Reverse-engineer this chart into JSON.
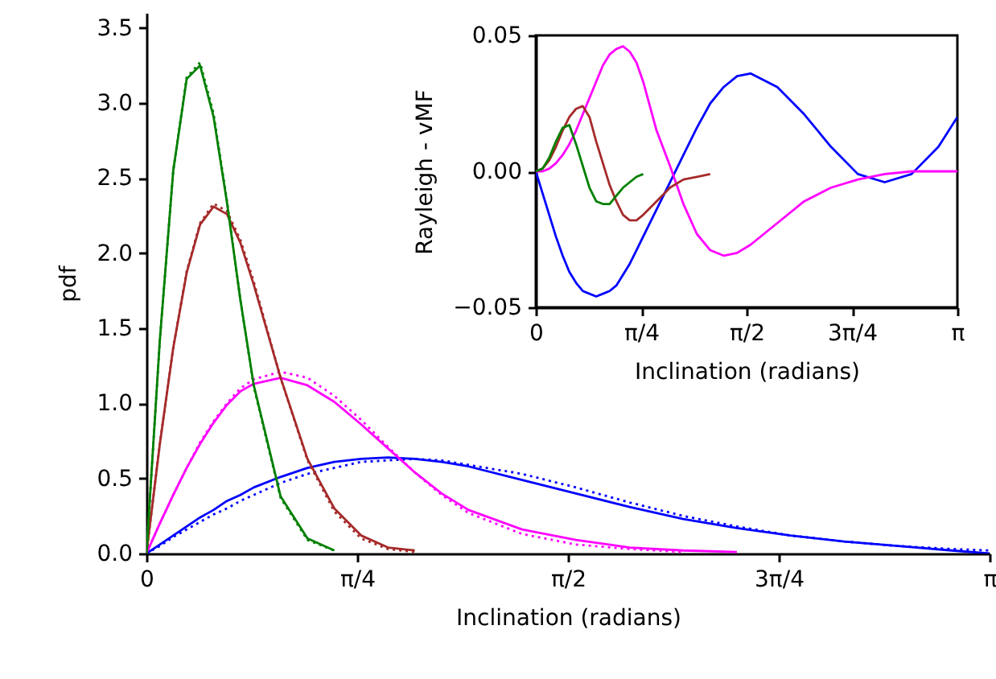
{
  "chart_data": [
    {
      "type": "line",
      "xlabel": "Inclination (radians)",
      "ylabel": "pdf",
      "xlim": [
        0,
        3.1416
      ],
      "ylim": [
        0,
        3.6
      ],
      "xticks": [
        {
          "value": 0,
          "label": "0"
        },
        {
          "value": 0.7854,
          "label": "π/4"
        },
        {
          "value": 1.5708,
          "label": "π/2"
        },
        {
          "value": 2.3562,
          "label": "3π/4"
        },
        {
          "value": 3.1416,
          "label": "π"
        }
      ],
      "yticks": [
        {
          "value": 0,
          "label": "0.0"
        },
        {
          "value": 0.5,
          "label": "0.5"
        },
        {
          "value": 1,
          "label": "1.0"
        },
        {
          "value": 1.5,
          "label": "1.5"
        },
        {
          "value": 2,
          "label": "2.0"
        },
        {
          "value": 2.5,
          "label": "2.5"
        },
        {
          "value": 3,
          "label": "3.0"
        },
        {
          "value": 3.5,
          "label": "3.5"
        }
      ],
      "x": [
        0,
        0.05,
        0.1,
        0.15,
        0.2,
        0.25,
        0.3,
        0.35,
        0.4,
        0.5,
        0.6,
        0.7,
        0.8,
        0.9,
        1.0,
        1.1,
        1.2,
        1.4,
        1.6,
        1.8,
        2.0,
        2.2,
        2.4,
        2.6,
        2.8,
        3.0,
        3.1416
      ],
      "series": [
        {
          "color": "#0000ff",
          "line_style": "solid",
          "values": [
            0,
            0.06,
            0.12,
            0.18,
            0.24,
            0.29,
            0.35,
            0.39,
            0.44,
            0.51,
            0.57,
            0.61,
            0.63,
            0.64,
            0.63,
            0.61,
            0.58,
            0.49,
            0.4,
            0.31,
            0.23,
            0.17,
            0.12,
            0.08,
            0.05,
            0.02,
            0
          ]
        },
        {
          "color": "#0000ff",
          "line_style": "dotted",
          "values": [
            0,
            0.05,
            0.11,
            0.16,
            0.21,
            0.26,
            0.3,
            0.35,
            0.39,
            0.47,
            0.53,
            0.57,
            0.61,
            0.62,
            0.63,
            0.62,
            0.59,
            0.53,
            0.44,
            0.34,
            0.25,
            0.18,
            0.12,
            0.08,
            0.05,
            0.03,
            0.02
          ]
        },
        {
          "color": "#ff00ff",
          "line_style": "solid",
          "x": [
            0,
            0.05,
            0.1,
            0.15,
            0.2,
            0.25,
            0.3,
            0.35,
            0.4,
            0.5,
            0.6,
            0.7,
            0.8,
            0.9,
            1.0,
            1.1,
            1.2,
            1.4,
            1.6,
            1.8,
            2.0,
            2.2
          ],
          "values": [
            0,
            0.2,
            0.39,
            0.57,
            0.73,
            0.87,
            0.99,
            1.08,
            1.13,
            1.17,
            1.12,
            1.01,
            0.86,
            0.7,
            0.54,
            0.4,
            0.29,
            0.16,
            0.09,
            0.04,
            0.02,
            0.01
          ]
        },
        {
          "color": "#ff00ff",
          "line_style": "dotted",
          "x": [
            0,
            0.05,
            0.1,
            0.15,
            0.2,
            0.25,
            0.3,
            0.35,
            0.4,
            0.5,
            0.6,
            0.7,
            0.8,
            0.9,
            1.0,
            1.1,
            1.2,
            1.4,
            1.6,
            1.8,
            2.0
          ],
          "values": [
            0,
            0.2,
            0.39,
            0.57,
            0.74,
            0.88,
            1.0,
            1.1,
            1.16,
            1.21,
            1.17,
            1.05,
            0.89,
            0.71,
            0.54,
            0.39,
            0.27,
            0.13,
            0.06,
            0.03,
            0.01
          ]
        },
        {
          "color": "#a52a2a",
          "line_style": "solid",
          "x": [
            0,
            0.05,
            0.1,
            0.15,
            0.2,
            0.25,
            0.3,
            0.35,
            0.4,
            0.5,
            0.6,
            0.7,
            0.8,
            0.9,
            1.0
          ],
          "values": [
            0,
            0.73,
            1.37,
            1.87,
            2.19,
            2.31,
            2.26,
            2.07,
            1.79,
            1.17,
            0.63,
            0.3,
            0.12,
            0.04,
            0.02
          ]
        },
        {
          "color": "#a52a2a",
          "line_style": "dotted",
          "x": [
            0,
            0.05,
            0.1,
            0.15,
            0.2,
            0.25,
            0.3,
            0.35,
            0.4,
            0.5,
            0.6,
            0.7,
            0.8,
            0.9,
            1.0
          ],
          "values": [
            0,
            0.73,
            1.37,
            1.88,
            2.2,
            2.33,
            2.28,
            2.09,
            1.81,
            1.17,
            0.62,
            0.28,
            0.1,
            0.03,
            0.01
          ]
        },
        {
          "color": "#008000",
          "line_style": "solid",
          "x": [
            0,
            0.05,
            0.1,
            0.15,
            0.2,
            0.25,
            0.3,
            0.35,
            0.4,
            0.5,
            0.6,
            0.7
          ],
          "values": [
            0,
            1.42,
            2.55,
            3.16,
            3.25,
            2.91,
            2.34,
            1.69,
            1.12,
            0.38,
            0.1,
            0.02
          ]
        },
        {
          "color": "#008000",
          "line_style": "dotted",
          "x": [
            0,
            0.05,
            0.1,
            0.15,
            0.2,
            0.25,
            0.3,
            0.35,
            0.4,
            0.5,
            0.6,
            0.7
          ],
          "values": [
            0,
            1.42,
            2.55,
            3.17,
            3.27,
            2.93,
            2.35,
            1.69,
            1.11,
            0.37,
            0.09,
            0.02
          ]
        }
      ]
    },
    {
      "type": "line",
      "xlabel": "Inclination (radians)",
      "ylabel": "Rayleigh - vMF",
      "xlim": [
        0,
        3.1416
      ],
      "ylim": [
        -0.05,
        0.05
      ],
      "xticks": [
        {
          "value": 0,
          "label": "0"
        },
        {
          "value": 0.7854,
          "label": "π/4"
        },
        {
          "value": 1.5708,
          "label": "π/2"
        },
        {
          "value": 2.3562,
          "label": "3π/4"
        },
        {
          "value": 3.1416,
          "label": "π"
        }
      ],
      "yticks": [
        {
          "value": -0.05,
          "label": "−0.05"
        },
        {
          "value": 0,
          "label": "0.00"
        },
        {
          "value": 0.05,
          "label": "0.05"
        }
      ],
      "x": [
        0,
        0.05,
        0.1,
        0.15,
        0.2,
        0.25,
        0.3,
        0.35,
        0.4,
        0.45,
        0.5,
        0.55,
        0.6,
        0.65,
        0.7,
        0.75,
        0.8,
        0.9,
        1.0,
        1.1,
        1.2,
        1.3,
        1.4,
        1.5,
        1.6,
        1.8,
        2.0,
        2.2,
        2.4,
        2.6,
        2.8,
        3.0,
        3.1416
      ],
      "series": [
        {
          "color": "#0000ff",
          "values": [
            0,
            -0.008,
            -0.016,
            -0.024,
            -0.031,
            -0.037,
            -0.041,
            -0.044,
            -0.045,
            -0.046,
            -0.045,
            -0.044,
            -0.042,
            -0.038,
            -0.034,
            -0.029,
            -0.024,
            -0.014,
            -0.004,
            0.006,
            0.016,
            0.025,
            0.031,
            0.035,
            0.036,
            0.031,
            0.021,
            0.009,
            -0.001,
            -0.004,
            -0.001,
            0.009,
            0.02
          ]
        },
        {
          "color": "#ff00ff",
          "values": [
            0,
            0,
            0.001,
            0.003,
            0.006,
            0.01,
            0.015,
            0.021,
            0.027,
            0.033,
            0.039,
            0.043,
            0.045,
            0.046,
            0.044,
            0.04,
            0.033,
            0.015,
            0.002,
            -0.012,
            -0.023,
            -0.029,
            -0.031,
            -0.03,
            -0.027,
            -0.019,
            -0.011,
            -0.006,
            -0.003,
            -0.001,
            0,
            0,
            0
          ]
        },
        {
          "color": "#a52a2a",
          "x": [
            0,
            0.05,
            0.1,
            0.15,
            0.2,
            0.25,
            0.3,
            0.35,
            0.4,
            0.45,
            0.5,
            0.55,
            0.6,
            0.65,
            0.7,
            0.75,
            0.8,
            0.9,
            1.0,
            1.1,
            1.2,
            1.3
          ],
          "values": [
            0,
            0.001,
            0.004,
            0.009,
            0.015,
            0.02,
            0.023,
            0.024,
            0.02,
            0.011,
            0.003,
            -0.005,
            -0.011,
            -0.016,
            -0.018,
            -0.018,
            -0.016,
            -0.011,
            -0.006,
            -0.003,
            -0.002,
            -0.001
          ]
        },
        {
          "color": "#008000",
          "x": [
            0,
            0.05,
            0.1,
            0.15,
            0.2,
            0.25,
            0.3,
            0.35,
            0.4,
            0.45,
            0.5,
            0.55,
            0.6,
            0.65,
            0.7,
            0.75,
            0.8
          ],
          "values": [
            0,
            0.001,
            0.005,
            0.011,
            0.016,
            0.017,
            0.01,
            0.002,
            -0.006,
            -0.011,
            -0.012,
            -0.012,
            -0.009,
            -0.006,
            -0.004,
            -0.002,
            -0.001
          ]
        }
      ]
    }
  ]
}
